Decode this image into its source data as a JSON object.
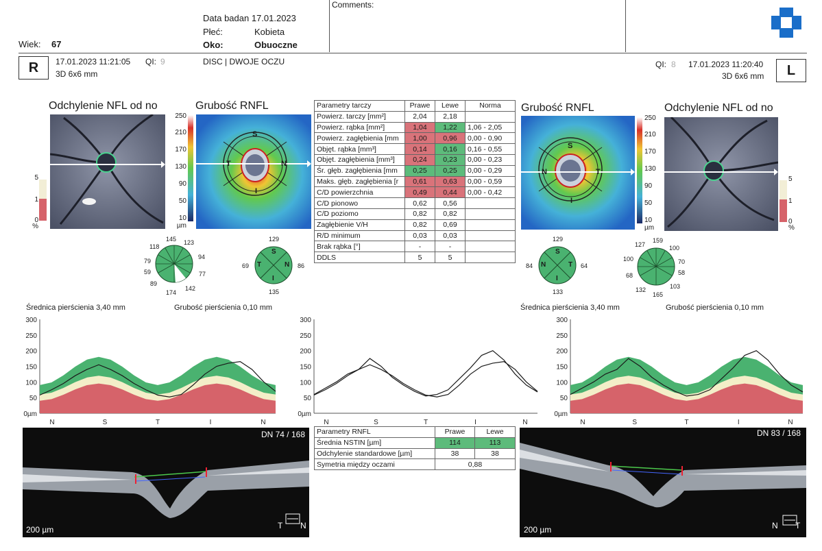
{
  "header": {
    "age_label": "Wiek:",
    "age_value": "67",
    "exam_date": "Data badan 17.01.2023",
    "sex_label": "Płeć:",
    "sex_value": "Kobieta",
    "eye_label": "Oko:",
    "eye_value": "Obuoczne",
    "comments_label": "Comments:",
    "mode": "DISC | DWOJE OCZU"
  },
  "right_eye": {
    "letter": "R",
    "datetime": "17.01.2023 11:21:05",
    "qi_label": "QI:",
    "qi_value": "9",
    "scan": "3D 6x6 mm",
    "deviation_title": "Odchylenie NFL od no",
    "thickness_title": "Grubość RNFL",
    "clock": [
      "145",
      "123",
      "94",
      "77",
      "142",
      "174",
      "89",
      "59",
      "79",
      "118"
    ],
    "quadrant": {
      "S": "129",
      "N": "86",
      "I": "135",
      "T": "69"
    },
    "bscan_label": "DN 74 / 168",
    "bscan_scale": "200 µm",
    "bscan_dir": [
      "T",
      "N"
    ]
  },
  "left_eye": {
    "letter": "L",
    "datetime": "17.01.2023 11:20:40",
    "qi_label": "QI:",
    "qi_value": "8",
    "scan": "3D 6x6 mm",
    "deviation_title": "Odchylenie NFL od no",
    "thickness_title": "Grubość RNFL",
    "clock": [
      "159",
      "100",
      "70",
      "58",
      "103",
      "165",
      "132",
      "68",
      "100",
      "127"
    ],
    "quadrant": {
      "S": "129",
      "T": "64",
      "I": "133",
      "N": "84"
    },
    "bscan_label": "DN 83 / 168",
    "bscan_scale": "200 µm",
    "bscan_dir": [
      "N",
      "T"
    ]
  },
  "thickness_scale": [
    "250",
    "210",
    "170",
    "130",
    "90",
    "50",
    "10",
    "µm"
  ],
  "deviation_scale": [
    "5",
    "1",
    "0",
    "%"
  ],
  "quad_letters": {
    "S": "S",
    "N": "N",
    "I": "I",
    "T": "T"
  },
  "disc_table": {
    "headers": [
      "Parametry tarczy",
      "Prawe",
      "Lewe",
      "Norma"
    ],
    "rows": [
      {
        "label": "Powierz. tarczy [mm²]",
        "r": "2,04",
        "l": "2,18",
        "n": "",
        "rc": "",
        "lc": ""
      },
      {
        "label": "Powierz. rąbka [mm²]",
        "r": "1,04",
        "l": "1,22",
        "n": "1,06 - 2,05",
        "rc": "red",
        "lc": "green"
      },
      {
        "label": "Powierz. zagłębienia [mm",
        "r": "1,00",
        "l": "0,96",
        "n": "0,00 - 0,90",
        "rc": "red",
        "lc": "red"
      },
      {
        "label": "Objęt. rąbka [mm³]",
        "r": "0,14",
        "l": "0,16",
        "n": "0,16 - 0,55",
        "rc": "red",
        "lc": "green"
      },
      {
        "label": "Objęt. zagłębienia [mm³]",
        "r": "0,24",
        "l": "0,23",
        "n": "0,00 - 0,23",
        "rc": "red",
        "lc": "green"
      },
      {
        "label": "Śr. głęb. zagłębienia [mm",
        "r": "0,25",
        "l": "0,25",
        "n": "0,00 - 0,29",
        "rc": "green",
        "lc": "green"
      },
      {
        "label": "Maks. głęb. zagłębienia [r",
        "r": "0,61",
        "l": "0,63",
        "n": "0,00 - 0,59",
        "rc": "red",
        "lc": "red"
      },
      {
        "label": "C/D powierzchnia",
        "r": "0,49",
        "l": "0,44",
        "n": "0,00 - 0,42",
        "rc": "red",
        "lc": "red"
      },
      {
        "label": "C/D pionowo",
        "r": "0,62",
        "l": "0,56",
        "n": "",
        "rc": "",
        "lc": ""
      },
      {
        "label": "C/D poziomo",
        "r": "0,82",
        "l": "0,82",
        "n": "",
        "rc": "",
        "lc": ""
      },
      {
        "label": "Zagłębienie V/H",
        "r": "0,82",
        "l": "0,69",
        "n": "",
        "rc": "",
        "lc": ""
      },
      {
        "label": "R/D minimum",
        "r": "0,03",
        "l": "0,03",
        "n": "",
        "rc": "",
        "lc": ""
      },
      {
        "label": "Brak rąbka [°]",
        "r": "-",
        "l": "-",
        "n": "",
        "rc": "",
        "lc": ""
      },
      {
        "label": "DDLS",
        "r": "5",
        "l": "5",
        "n": "",
        "rc": "",
        "lc": ""
      }
    ]
  },
  "rnfl_table": {
    "headers": [
      "Parametry RNFL",
      "Prawe",
      "Lewe"
    ],
    "rows": [
      {
        "label": "Średnia NSTIN [µm]",
        "r": "114",
        "l": "113",
        "rc": "green",
        "lc": "green"
      },
      {
        "label": "Odchylenie standardowe [µm]",
        "r": "38",
        "l": "38",
        "rc": "",
        "lc": ""
      }
    ],
    "symmetry_label": "Symetria między oczami",
    "symmetry_value": "0,88"
  },
  "ring": {
    "diameter_label": "Średnica pierścienia 3,40 mm",
    "thickness_label": "Grubość pierścienia 0,10 mm"
  },
  "chart_data": [
    {
      "type": "line",
      "xlabels": [
        "N",
        "S",
        "T",
        "I",
        "N"
      ],
      "yticks": [
        "300",
        "250",
        "200",
        "150",
        "100",
        "50",
        "0µm"
      ],
      "ylim": [
        0,
        300
      ],
      "series": [
        {
          "values": [
            58,
            75,
            95,
            120,
            140,
            155,
            140,
            120,
            95,
            75,
            58,
            52,
            60,
            90,
            125,
            150,
            160,
            165,
            140,
            100,
            70
          ]
        }
      ]
    },
    {
      "type": "line",
      "xlabels": [
        "N",
        "S",
        "T",
        "I",
        "N"
      ],
      "yticks": [
        "300",
        "250",
        "200",
        "150",
        "100",
        "50",
        "0µm"
      ],
      "ylim": [
        0,
        300
      ],
      "series": [
        {
          "values": [
            58,
            75,
            95,
            120,
            140,
            155,
            140,
            120,
            95,
            75,
            58,
            52,
            60,
            90,
            125,
            150,
            160,
            165,
            140,
            100,
            70
          ]
        },
        {
          "values": [
            60,
            80,
            100,
            125,
            140,
            175,
            150,
            115,
            90,
            70,
            55,
            60,
            75,
            110,
            145,
            185,
            200,
            170,
            125,
            90,
            68
          ]
        }
      ]
    },
    {
      "type": "line",
      "xlabels": [
        "N",
        "S",
        "T",
        "I",
        "N"
      ],
      "yticks": [
        "300",
        "250",
        "200",
        "150",
        "100",
        "50",
        "0µm"
      ],
      "ylim": [
        0,
        300
      ],
      "series": [
        {
          "values": [
            60,
            80,
            100,
            125,
            140,
            175,
            150,
            115,
            90,
            70,
            55,
            60,
            75,
            110,
            145,
            185,
            200,
            170,
            125,
            90,
            68
          ]
        }
      ]
    }
  ]
}
